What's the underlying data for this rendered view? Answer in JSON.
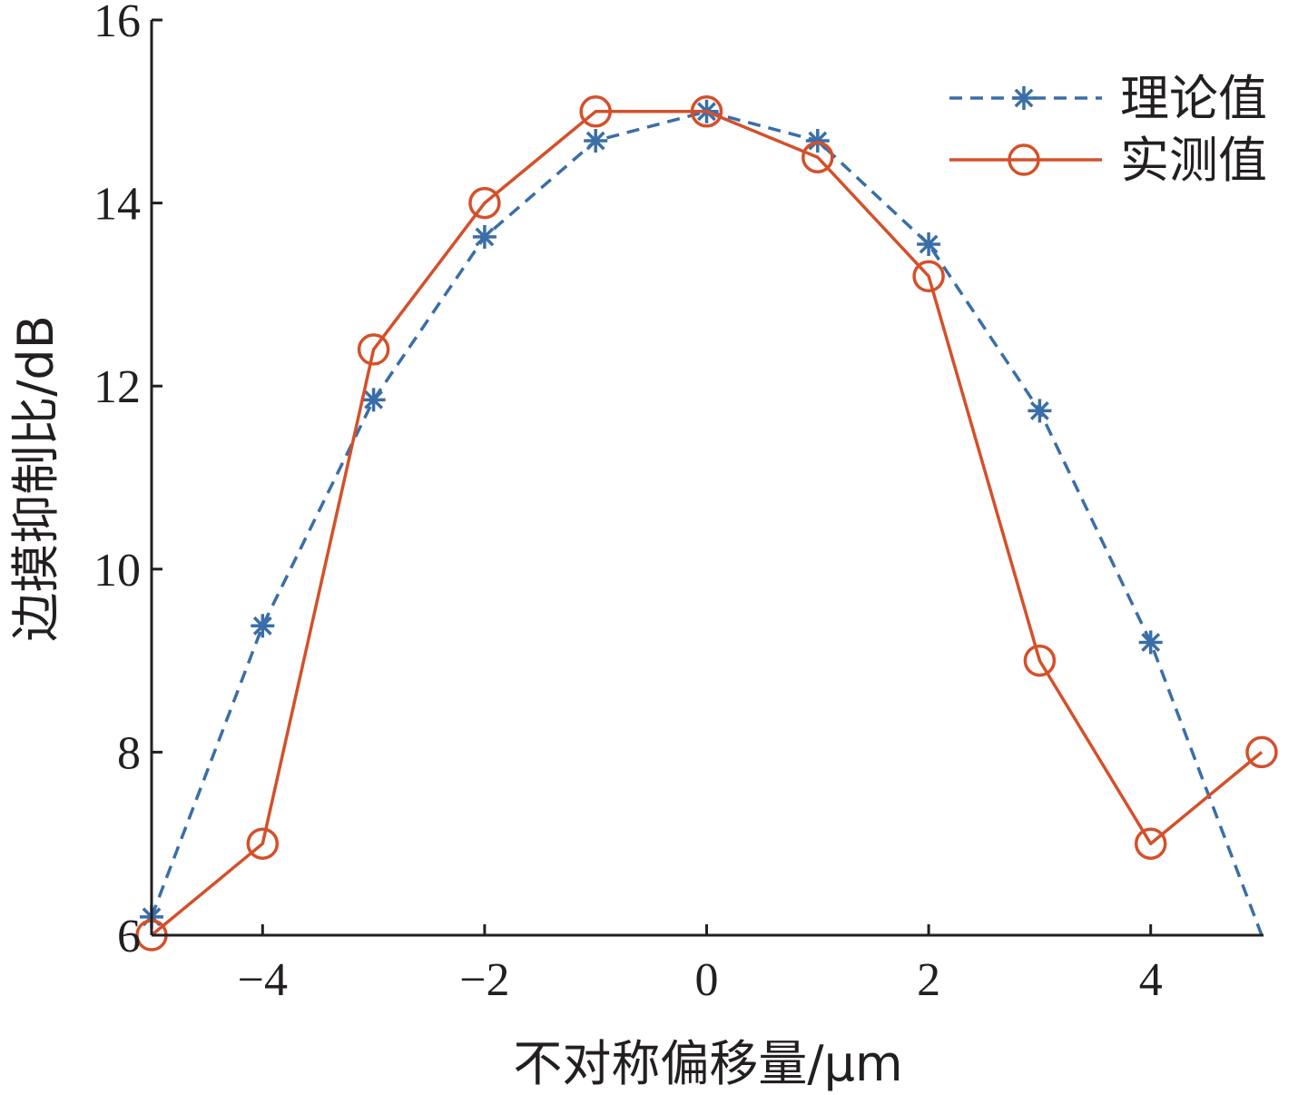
{
  "chart_data": {
    "type": "line",
    "xlabel": "不对称偏移量/μm",
    "ylabel": "边摸抑制比/dB",
    "xlim": [
      -5,
      5
    ],
    "ylim": [
      6,
      16
    ],
    "xticks": [
      -4,
      -2,
      0,
      2,
      4
    ],
    "xtick_labels": [
      "−4",
      "−2",
      "0",
      "2",
      "4"
    ],
    "yticks": [
      6,
      8,
      10,
      12,
      14,
      16
    ],
    "ytick_labels": [
      "6",
      "8",
      "10",
      "12",
      "14",
      "16"
    ],
    "grid": false,
    "legend_position": "top-right",
    "series": [
      {
        "name": "理论值",
        "color": "#3a6ea8",
        "line_style": "dashed",
        "marker": "asterisk",
        "points": [
          [
            -5,
            6.2
          ],
          [
            -4,
            9.38
          ],
          [
            -3,
            11.85
          ],
          [
            -2,
            13.63
          ],
          [
            -1,
            14.68
          ],
          [
            0,
            15.0
          ],
          [
            1,
            14.68
          ],
          [
            2,
            13.55
          ],
          [
            3,
            11.73
          ],
          [
            4,
            9.2
          ],
          [
            5,
            6.0
          ]
        ],
        "marker_x": [
          -5,
          -4,
          -3,
          -2,
          -1,
          0,
          1,
          2,
          3,
          4
        ]
      },
      {
        "name": "实测值",
        "color": "#d4502a",
        "line_style": "solid",
        "marker": "circle",
        "points": [
          [
            -5,
            6.0
          ],
          [
            -4,
            7.0
          ],
          [
            -3,
            12.4
          ],
          [
            -2,
            14.0
          ],
          [
            -1,
            15.0
          ],
          [
            0,
            15.0
          ],
          [
            1,
            14.5
          ],
          [
            2,
            13.2
          ],
          [
            3,
            9.0
          ],
          [
            4,
            7.0
          ],
          [
            5,
            8.0
          ]
        ],
        "marker_x": [
          -5,
          -4,
          -3,
          -2,
          -1,
          0,
          1,
          2,
          3,
          4,
          5
        ]
      }
    ]
  }
}
